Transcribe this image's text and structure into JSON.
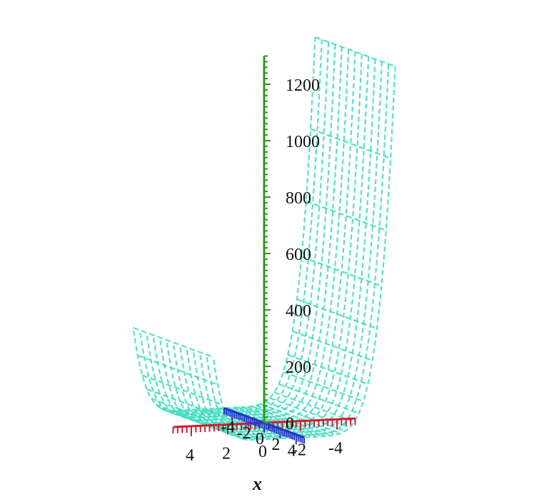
{
  "chart_data": {
    "type": "surface3d",
    "title": "",
    "x_axis": {
      "label": "x",
      "range": [
        -5,
        5
      ],
      "ticks": [
        {
          "value": 4,
          "label": "4"
        },
        {
          "value": 2,
          "label": "2"
        },
        {
          "value": 0,
          "label": "0"
        },
        {
          "value": -2,
          "label": "-2"
        },
        {
          "value": -4,
          "label": "-4"
        }
      ],
      "color": "#cc1f2e"
    },
    "y_axis": {
      "label": "",
      "range": [
        -5,
        5
      ],
      "ticks": [
        {
          "value": -4,
          "label": "-4"
        },
        {
          "value": -2,
          "label": "-2"
        },
        {
          "value": 0,
          "label": "0"
        },
        {
          "value": 2,
          "label": "2"
        },
        {
          "value": 4,
          "label": "4"
        }
      ],
      "color": "#2233cc"
    },
    "z_axis": {
      "label": "",
      "range": [
        0,
        1300
      ],
      "ticks": [
        {
          "value": 0,
          "label": "0"
        },
        {
          "value": 200,
          "label": "200"
        },
        {
          "value": 400,
          "label": "400"
        },
        {
          "value": 600,
          "label": "600"
        },
        {
          "value": 800,
          "label": "800"
        },
        {
          "value": 1000,
          "label": "1000"
        },
        {
          "value": 1200,
          "label": "1200"
        }
      ],
      "color": "#2a9a1a"
    },
    "surface": {
      "color": "#44ddc0",
      "style": "dashed mesh, transparent",
      "z_at_x_min_edge": 1300,
      "z_at_x_max_edge": 300,
      "z_min": 0
    }
  }
}
